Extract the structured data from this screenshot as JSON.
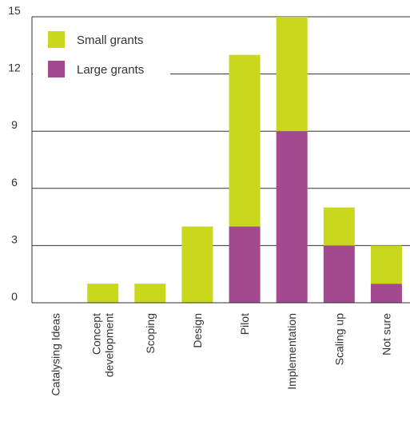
{
  "chart_data": {
    "type": "bar",
    "stacked": true,
    "title": "",
    "xlabel": "",
    "ylabel": "",
    "categories": [
      [
        "Catalysing Ideas"
      ],
      [
        "Concept",
        "development"
      ],
      [
        "Scoping"
      ],
      [
        "Design"
      ],
      [
        "Pilot"
      ],
      [
        "Implementation"
      ],
      [
        "Scaling up"
      ],
      [
        "Not sure"
      ]
    ],
    "series": [
      {
        "name": "Large grants",
        "color": "#a34a8e",
        "values": [
          0,
          0,
          0,
          0,
          4,
          9,
          3,
          1
        ]
      },
      {
        "name": "Small grants",
        "color": "#c9d81c",
        "values": [
          0,
          1,
          1,
          4,
          9,
          6,
          2,
          2
        ]
      }
    ],
    "ylim": [
      0,
      15
    ],
    "yticks": [
      0,
      3,
      6,
      9,
      12,
      15
    ],
    "grid": "horizontal",
    "legend": {
      "position": "top-left",
      "order": [
        "Small grants",
        "Large grants"
      ]
    }
  }
}
